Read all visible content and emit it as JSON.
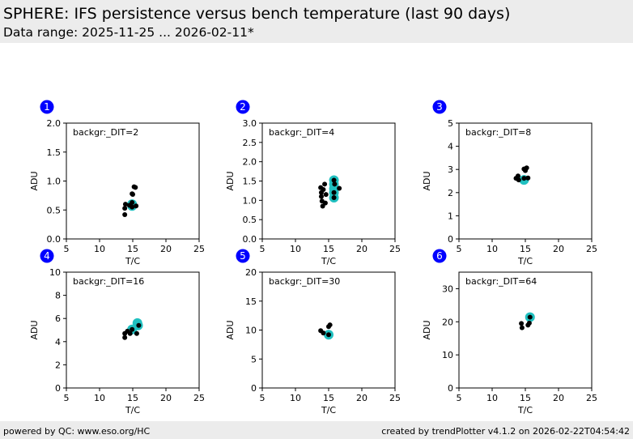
{
  "header": {
    "title": "SPHERE: IFS persistence versus bench temperature (last 90 days)",
    "subtitle": "Data range: 2025-11-25 ... 2026-02-11*"
  },
  "footer": {
    "left": "powered by QC: www.eso.org/HC",
    "right": "created by trendPlotter v4.1.2 on 2026-02-22T04:54:42"
  },
  "colors": {
    "badge": "#0000ff",
    "badge_text": "#ffffff",
    "point": "#000000",
    "highlight": "#20c0c0"
  },
  "chart_data": [
    {
      "type": "scatter",
      "badge": "1",
      "label": "backgr:_DIT=2",
      "xlabel": "T/C",
      "ylabel": "ADU",
      "xlim": [
        5,
        25
      ],
      "ylim": [
        0,
        2
      ],
      "xticks": [
        "5",
        "10",
        "15",
        "20",
        "25"
      ],
      "yticks": [
        "0.0",
        "0.5",
        "1.0",
        "1.5",
        "2.0"
      ],
      "points": [
        [
          13.8,
          0.42
        ],
        [
          13.8,
          0.53
        ],
        [
          13.9,
          0.6
        ],
        [
          14.5,
          0.58
        ],
        [
          14.9,
          0.78
        ],
        [
          15.0,
          0.77
        ],
        [
          15.2,
          0.9
        ],
        [
          15.4,
          0.89
        ],
        [
          15.5,
          0.57
        ],
        [
          14.9,
          0.55
        ],
        [
          14.9,
          0.63
        ]
      ],
      "highlight": [
        [
          14.9,
          0.6
        ],
        [
          14.9,
          0.57
        ]
      ]
    },
    {
      "type": "scatter",
      "badge": "2",
      "label": "backgr:_DIT=4",
      "xlabel": "T/C",
      "ylabel": "ADU",
      "xlim": [
        5,
        25
      ],
      "ylim": [
        0,
        3
      ],
      "xticks": [
        "5",
        "10",
        "15",
        "20",
        "25"
      ],
      "yticks": [
        "0.0",
        "0.5",
        "1.0",
        "1.5",
        "2.0",
        "2.5",
        "3.0"
      ],
      "points": [
        [
          13.8,
          1.33
        ],
        [
          13.9,
          1.2
        ],
        [
          13.9,
          1.1
        ],
        [
          14.0,
          0.98
        ],
        [
          14.1,
          0.85
        ],
        [
          14.2,
          1.28
        ],
        [
          14.4,
          1.42
        ],
        [
          14.5,
          0.93
        ],
        [
          14.6,
          1.15
        ],
        [
          16.6,
          1.31
        ],
        [
          15.8,
          1.52
        ],
        [
          15.9,
          1.42
        ],
        [
          15.8,
          1.2
        ],
        [
          15.8,
          1.07
        ]
      ],
      "highlight": [
        [
          15.8,
          1.52
        ],
        [
          15.8,
          1.42
        ],
        [
          15.8,
          1.3
        ],
        [
          15.8,
          1.2
        ],
        [
          15.8,
          1.07
        ]
      ]
    },
    {
      "type": "scatter",
      "badge": "3",
      "label": "backgr:_DIT=8",
      "xlabel": "T/C",
      "ylabel": "ADU",
      "xlim": [
        5,
        25
      ],
      "ylim": [
        0,
        5
      ],
      "xticks": [
        "5",
        "10",
        "15",
        "20",
        "25"
      ],
      "yticks": [
        "0",
        "1",
        "2",
        "3",
        "4",
        "5"
      ],
      "points": [
        [
          13.6,
          2.62
        ],
        [
          13.9,
          2.72
        ],
        [
          14.0,
          2.55
        ],
        [
          14.8,
          3.02
        ],
        [
          15.0,
          2.95
        ],
        [
          15.2,
          3.07
        ],
        [
          15.4,
          2.63
        ],
        [
          14.8,
          2.62
        ]
      ],
      "highlight": [
        [
          14.8,
          2.55
        ]
      ]
    },
    {
      "type": "scatter",
      "badge": "4",
      "label": "backgr:_DIT=16",
      "xlabel": "T/C",
      "ylabel": "ADU",
      "xlim": [
        5,
        25
      ],
      "ylim": [
        0,
        10
      ],
      "xticks": [
        "5",
        "10",
        "15",
        "20",
        "25"
      ],
      "yticks": [
        "0",
        "2",
        "4",
        "6",
        "8",
        "10"
      ],
      "points": [
        [
          13.8,
          4.35
        ],
        [
          13.8,
          4.7
        ],
        [
          14.2,
          4.9
        ],
        [
          14.6,
          4.7
        ],
        [
          15.6,
          4.7
        ],
        [
          14.9,
          5.05
        ],
        [
          15.9,
          5.4
        ]
      ],
      "highlight": [
        [
          14.9,
          5.05
        ],
        [
          15.7,
          5.6
        ],
        [
          15.8,
          5.4
        ]
      ]
    },
    {
      "type": "scatter",
      "badge": "5",
      "label": "backgr:_DIT=30",
      "xlabel": "T/C",
      "ylabel": "ADU",
      "xlim": [
        5,
        25
      ],
      "ylim": [
        0,
        20
      ],
      "xticks": [
        "5",
        "10",
        "15",
        "20",
        "25"
      ],
      "yticks": [
        "0",
        "5",
        "10",
        "15",
        "20"
      ],
      "points": [
        [
          13.8,
          9.9
        ],
        [
          14.2,
          9.5
        ],
        [
          15.0,
          10.6
        ],
        [
          15.2,
          10.9
        ],
        [
          15.0,
          9.2
        ]
      ],
      "highlight": [
        [
          15.0,
          9.2
        ]
      ]
    },
    {
      "type": "scatter",
      "badge": "6",
      "label": "backgr:_DIT=64",
      "xlabel": "T/C",
      "ylabel": "ADU",
      "xlim": [
        5,
        25
      ],
      "ylim": [
        0,
        35
      ],
      "xticks": [
        "5",
        "10",
        "15",
        "20",
        "25"
      ],
      "yticks": [
        "0",
        "10",
        "20",
        "30"
      ],
      "points": [
        [
          14.4,
          19.5
        ],
        [
          14.5,
          18.2
        ],
        [
          15.4,
          19.0
        ],
        [
          15.6,
          19.6
        ],
        [
          15.7,
          21.4
        ]
      ],
      "highlight": [
        [
          15.7,
          21.4
        ]
      ]
    }
  ]
}
